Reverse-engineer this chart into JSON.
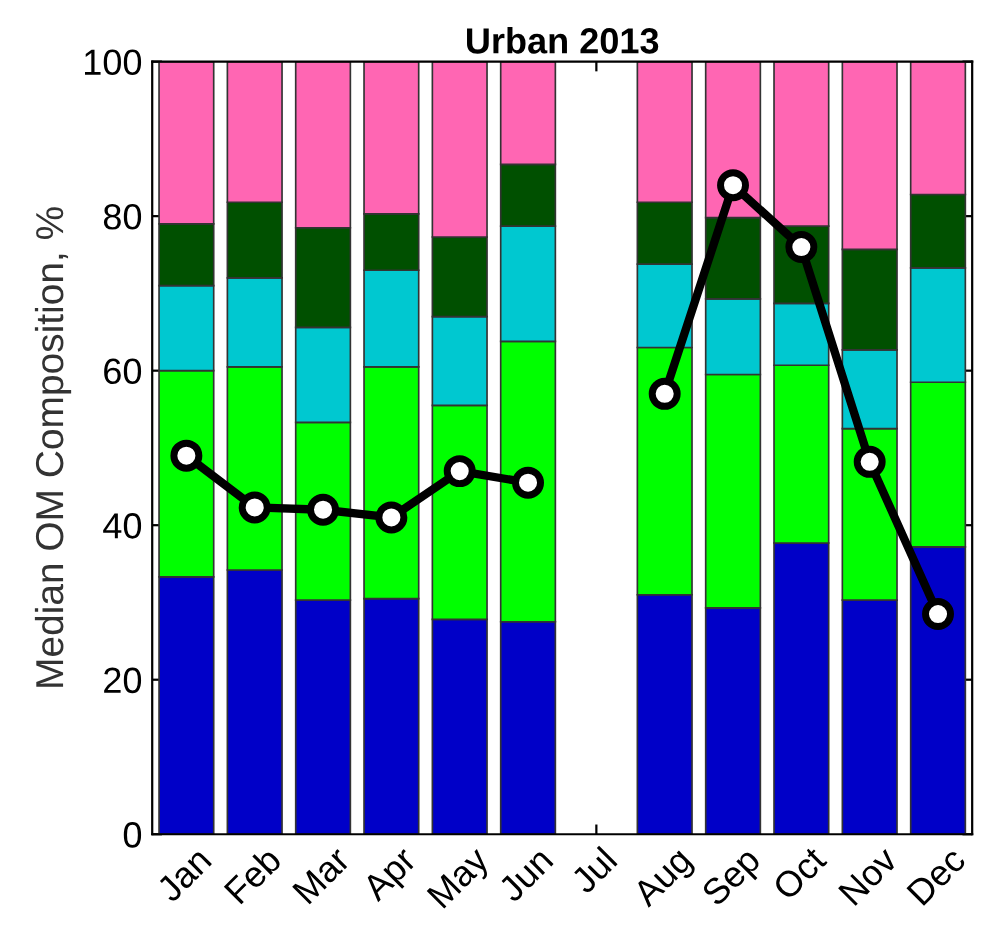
{
  "chart_data": {
    "type": "bar",
    "stacked": true,
    "title": "Urban 2013",
    "ylabel": "Median OM Composition, %",
    "categories": [
      "Jan",
      "Feb",
      "Mar",
      "Apr",
      "May",
      "Jun",
      "Jul",
      "Aug",
      "Sep",
      "Oct",
      "Nov",
      "Dec"
    ],
    "ylim": [
      0,
      100
    ],
    "yticks": [
      0,
      20,
      40,
      60,
      80,
      100
    ],
    "grid": false,
    "legend": false,
    "series": [
      {
        "color": "#0000c8",
        "values": [
          33.3,
          34.2,
          30.3,
          30.5,
          27.8,
          27.5,
          null,
          31,
          29.3,
          37.7,
          30.3,
          37.2
        ]
      },
      {
        "color": "#00ff00",
        "values": [
          26.7,
          26.3,
          23,
          30,
          27.7,
          36.3,
          null,
          32,
          30.2,
          23,
          22.2,
          21.3
        ]
      },
      {
        "color": "#00c8d0",
        "values": [
          11,
          11.5,
          12.3,
          12.5,
          11.5,
          14.9,
          null,
          10.8,
          9.8,
          8,
          10.2,
          14.8
        ]
      },
      {
        "color": "#005000",
        "values": [
          8,
          9.8,
          12.9,
          7.3,
          10.3,
          8,
          null,
          8,
          10.5,
          10,
          13,
          9.5
        ]
      },
      {
        "color": "#ff66b3",
        "values": [
          21,
          18.2,
          21.5,
          19.7,
          22.7,
          13.3,
          null,
          18.2,
          20.2,
          21.3,
          24.3,
          17.2
        ]
      },
      {
        "type": "line",
        "color": "#000000",
        "marker": "circle",
        "line_style": "solid",
        "values": [
          49,
          42.3,
          42,
          41,
          47,
          45.5,
          null,
          57,
          84,
          76,
          48.2,
          28.5
        ]
      }
    ]
  }
}
